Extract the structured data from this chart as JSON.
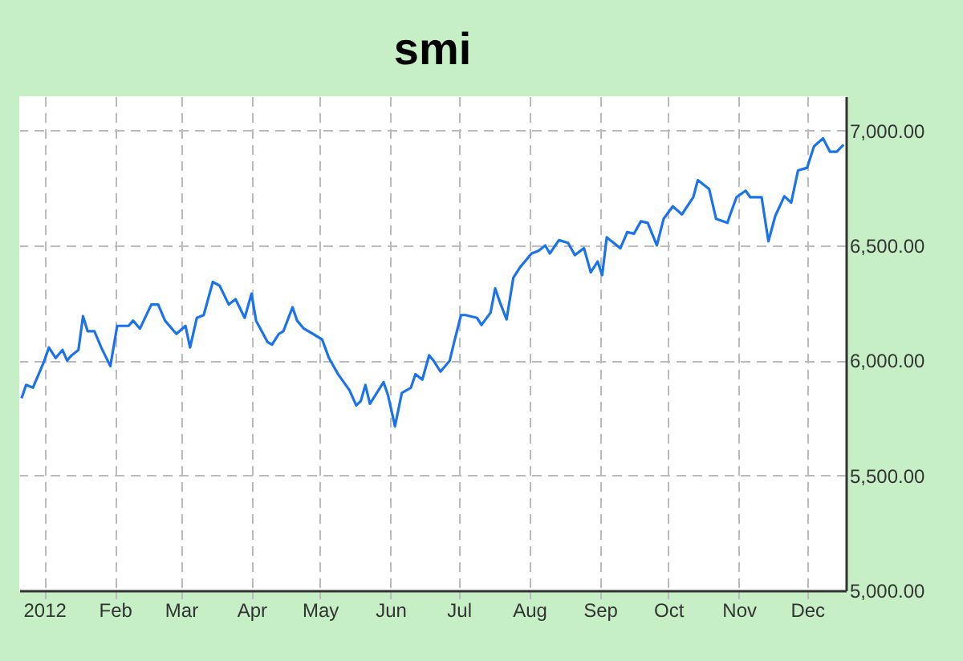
{
  "chart_data": {
    "type": "line",
    "title": "smi",
    "x": [
      "2011-12-22",
      "2011-12-24",
      "2011-12-27",
      "2012-01-01",
      "2012-01-03",
      "2012-01-06",
      "2012-01-09",
      "2012-01-11",
      "2012-01-13",
      "2012-01-16",
      "2012-01-18",
      "2012-01-20",
      "2012-01-23",
      "2012-01-26",
      "2012-01-30",
      "2012-02-02",
      "2012-02-07",
      "2012-02-09",
      "2012-02-12",
      "2012-02-17",
      "2012-02-20",
      "2012-02-23",
      "2012-02-28",
      "2012-03-03",
      "2012-03-05",
      "2012-03-08",
      "2012-03-11",
      "2012-03-15",
      "2012-03-18",
      "2012-03-22",
      "2012-03-25",
      "2012-03-29",
      "2012-04-01",
      "2012-04-03",
      "2012-04-08",
      "2012-04-10",
      "2012-04-13",
      "2012-04-15",
      "2012-04-19",
      "2012-04-21",
      "2012-04-24",
      "2012-04-28",
      "2012-05-02",
      "2012-05-05",
      "2012-05-09",
      "2012-05-14",
      "2012-05-17",
      "2012-05-19",
      "2012-05-21",
      "2012-05-23",
      "2012-05-29",
      "2012-05-31",
      "2012-06-03",
      "2012-06-06",
      "2012-06-10",
      "2012-06-12",
      "2012-06-15",
      "2012-06-18",
      "2012-06-20",
      "2012-06-23",
      "2012-06-27",
      "2012-06-29",
      "2012-07-02",
      "2012-07-04",
      "2012-07-09",
      "2012-07-11",
      "2012-07-15",
      "2012-07-17",
      "2012-07-19",
      "2012-07-22",
      "2012-07-25",
      "2012-07-28",
      "2012-08-02",
      "2012-08-05",
      "2012-08-08",
      "2012-08-10",
      "2012-08-14",
      "2012-08-18",
      "2012-08-21",
      "2012-08-25",
      "2012-08-28",
      "2012-08-31",
      "2012-09-02",
      "2012-09-04",
      "2012-09-10",
      "2012-09-13",
      "2012-09-16",
      "2012-09-19",
      "2012-09-22",
      "2012-09-26",
      "2012-09-29",
      "2012-10-03",
      "2012-10-07",
      "2012-10-12",
      "2012-10-14",
      "2012-10-19",
      "2012-10-22",
      "2012-10-27",
      "2012-10-28",
      "2012-10-31",
      "2012-11-04",
      "2012-11-06",
      "2012-11-11",
      "2012-11-14",
      "2012-11-17",
      "2012-11-21",
      "2012-11-24",
      "2012-11-27",
      "2012-12-01",
      "2012-12-04",
      "2012-12-08",
      "2012-12-11",
      "2012-12-14",
      "2012-12-17"
    ],
    "series": [
      {
        "color": "#1a73e8",
        "values": [
          5836,
          5894,
          5882,
          5999,
          6057,
          6011,
          6046,
          6000,
          6023,
          6046,
          6193,
          6128,
          6128,
          6057,
          5976,
          6151,
          6151,
          6174,
          6139,
          6244,
          6244,
          6174,
          6116,
          6151,
          6057,
          6186,
          6198,
          6342,
          6326,
          6244,
          6267,
          6186,
          6291,
          6174,
          6081,
          6069,
          6116,
          6128,
          6232,
          6174,
          6139,
          6116,
          6092,
          6011,
          5941,
          5871,
          5805,
          5824,
          5894,
          5812,
          5906,
          5847,
          5714,
          5859,
          5882,
          5941,
          5917,
          6023,
          5999,
          5952,
          5999,
          6081,
          6198,
          6198,
          6186,
          6155,
          6209,
          6314,
          6256,
          6179,
          6361,
          6407,
          6466,
          6477,
          6501,
          6466,
          6524,
          6512,
          6459,
          6489,
          6384,
          6431,
          6372,
          6536,
          6489,
          6559,
          6552,
          6606,
          6599,
          6501,
          6617,
          6671,
          6636,
          6711,
          6785,
          6746,
          6617,
          6599,
          6629,
          6711,
          6739,
          6711,
          6711,
          6519,
          6629,
          6715,
          6687,
          6827,
          6839,
          6932,
          6967,
          6909,
          6909,
          6939
        ]
      }
    ],
    "xlim": [
      "2011-12-21",
      "2012-12-18"
    ],
    "xticks": [
      {
        "value": "2012-01-01",
        "label": "2012"
      },
      {
        "value": "2012-02-01",
        "label": "Feb"
      },
      {
        "value": "2012-03-01",
        "label": "Mar"
      },
      {
        "value": "2012-04-01",
        "label": "Apr"
      },
      {
        "value": "2012-05-01",
        "label": "May"
      },
      {
        "value": "2012-06-01",
        "label": "Jun"
      },
      {
        "value": "2012-07-01",
        "label": "Jul"
      },
      {
        "value": "2012-08-01",
        "label": "Aug"
      },
      {
        "value": "2012-09-01",
        "label": "Sep"
      },
      {
        "value": "2012-10-01",
        "label": "Oct"
      },
      {
        "value": "2012-11-01",
        "label": "Nov"
      },
      {
        "value": "2012-12-01",
        "label": "Dec"
      }
    ],
    "ylim": [
      5000,
      7150
    ],
    "yticks": [
      {
        "value": 5000,
        "label": "5,000.00"
      },
      {
        "value": 5500,
        "label": "5,500.00"
      },
      {
        "value": 6000,
        "label": "6,000.00"
      },
      {
        "value": 6500,
        "label": "6,500.00"
      },
      {
        "value": 7000,
        "label": "7,000.00"
      }
    ],
    "grid": true
  }
}
